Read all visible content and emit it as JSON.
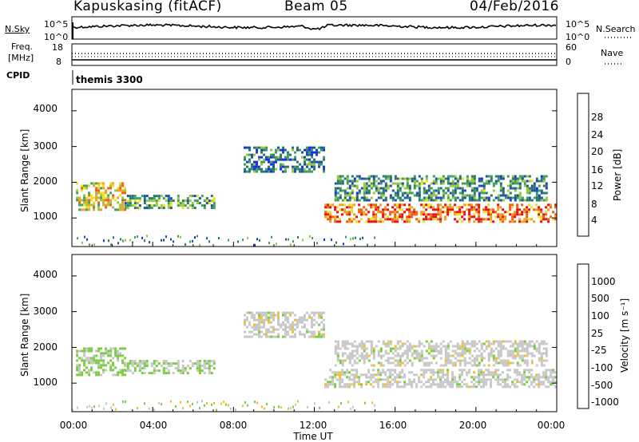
{
  "header": {
    "station": "Kapuskasing (fitACF)",
    "beam": "Beam 05",
    "date": "04/Feb/2016"
  },
  "strip_panels": {
    "nsky_label": "N.Sky",
    "nsky_ticks": [
      "10^5",
      "10^0"
    ],
    "nsearch_label": "N.Search",
    "nsearch_ticks": [
      "10^5",
      "10^0"
    ],
    "freq_label_line1": "Freq.",
    "freq_label_line2": "[MHz]",
    "freq_ticks": [
      "18",
      "8"
    ],
    "nave_label": "Nave",
    "nave_ticks": [
      "60",
      "0"
    ],
    "cpid_label": "CPID",
    "cpid_value": "themis 3300"
  },
  "chart_data": [
    {
      "type": "heatmap",
      "title": "",
      "xlabel": "Time UT",
      "ylabel": "Slant Range [km]",
      "xlim": [
        0,
        24
      ],
      "ylim": [
        200,
        4600
      ],
      "yticks": [
        "1000",
        "2000",
        "3000",
        "4000"
      ],
      "colorbar_label": "Power [dB]",
      "colorbar_ticks": [
        "4",
        "8",
        "12",
        "16",
        "20",
        "24",
        "28"
      ],
      "colorbar_range": [
        0,
        30
      ],
      "colors": [
        "#1a2cf0",
        "#1f4fa8",
        "#2a7a6a",
        "#3da060",
        "#98c840",
        "#f0e020",
        "#f0a020",
        "#f06010",
        "#e81010"
      ],
      "features": [
        {
          "t": [
            0.2,
            2.6
          ],
          "range": [
            1200,
            2000
          ],
          "value": 18
        },
        {
          "t": [
            2.6,
            7.0
          ],
          "range": [
            1300,
            1650
          ],
          "value": 12
        },
        {
          "t": [
            8.5,
            12.5
          ],
          "range": [
            2300,
            3000
          ],
          "value": 8
        },
        {
          "t": [
            12.5,
            24.0
          ],
          "range": [
            900,
            1400
          ],
          "value": 24
        },
        {
          "t": [
            13.0,
            23.5
          ],
          "range": [
            1500,
            2200
          ],
          "value": 10
        }
      ]
    },
    {
      "type": "heatmap",
      "title": "",
      "xlabel": "Time UT",
      "ylabel": "Slant Range [km]",
      "xlim": [
        0,
        24
      ],
      "ylim": [
        200,
        4600
      ],
      "xticks": [
        "00:00",
        "04:00",
        "08:00",
        "12:00",
        "16:00",
        "20:00",
        "00:00"
      ],
      "yticks": [
        "1000",
        "2000",
        "3000",
        "4000"
      ],
      "colorbar_label": "Velocity [m s⁻¹]",
      "colorbar_ticks": [
        "1000",
        "500",
        "100",
        "25",
        "-25",
        "-100",
        "-500",
        "-1000"
      ],
      "colorbar_range": [
        -1000,
        1000
      ],
      "colors": [
        "#1f3cb0",
        "#2a6a9a",
        "#3c9a5a",
        "#7acc40",
        "#c8c8c8",
        "#f0c020",
        "#f08020",
        "#f04010",
        "#e81010"
      ],
      "features": [
        {
          "t": [
            0.2,
            2.6
          ],
          "range": [
            1200,
            2000
          ],
          "value": -150
        },
        {
          "t": [
            2.6,
            7.0
          ],
          "range": [
            1300,
            1650
          ],
          "value": -100
        },
        {
          "t": [
            8.5,
            12.5
          ],
          "range": [
            2300,
            3000
          ],
          "value": 0
        },
        {
          "t": [
            12.5,
            24.0
          ],
          "range": [
            900,
            1400
          ],
          "value": 0
        },
        {
          "t": [
            13.0,
            23.5
          ],
          "range": [
            1500,
            2200
          ],
          "value": 0
        }
      ]
    }
  ]
}
